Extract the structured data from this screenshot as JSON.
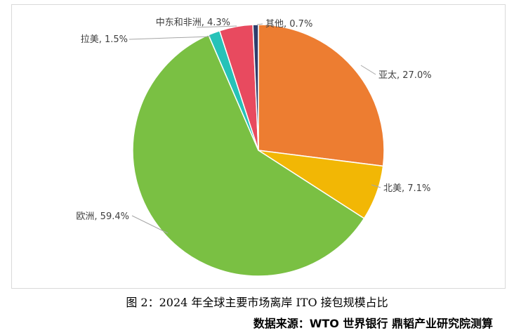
{
  "chart_data": {
    "type": "pie",
    "slices": [
      {
        "name": "亚太",
        "value": 27.0,
        "label": "亚太, 27.0%",
        "color": "#ED7D31"
      },
      {
        "name": "北美",
        "value": 7.1,
        "label": "北美, 7.1%",
        "color": "#F2B705"
      },
      {
        "name": "欧洲",
        "value": 59.4,
        "label": "欧洲, 59.4%",
        "color": "#7AC043"
      },
      {
        "name": "拉美",
        "value": 1.5,
        "label": "拉美, 1.5%",
        "color": "#26C2B8"
      },
      {
        "name": "中东和非洲",
        "value": 4.3,
        "label": "中东和非洲, 4.3%",
        "color": "#E84A5F"
      },
      {
        "name": "其他",
        "value": 0.7,
        "label": "其他, 0.7%",
        "color": "#2F3E6B"
      }
    ],
    "start_angle": "12 o'clock",
    "direction": "clockwise",
    "data_labels": "outside with leader lines"
  },
  "caption": "图 2：2024 年全球主要市场离岸 ITO 接包规模占比",
  "source": "数据来源：WTO 世界银行 鼎韬产业研究院测算"
}
